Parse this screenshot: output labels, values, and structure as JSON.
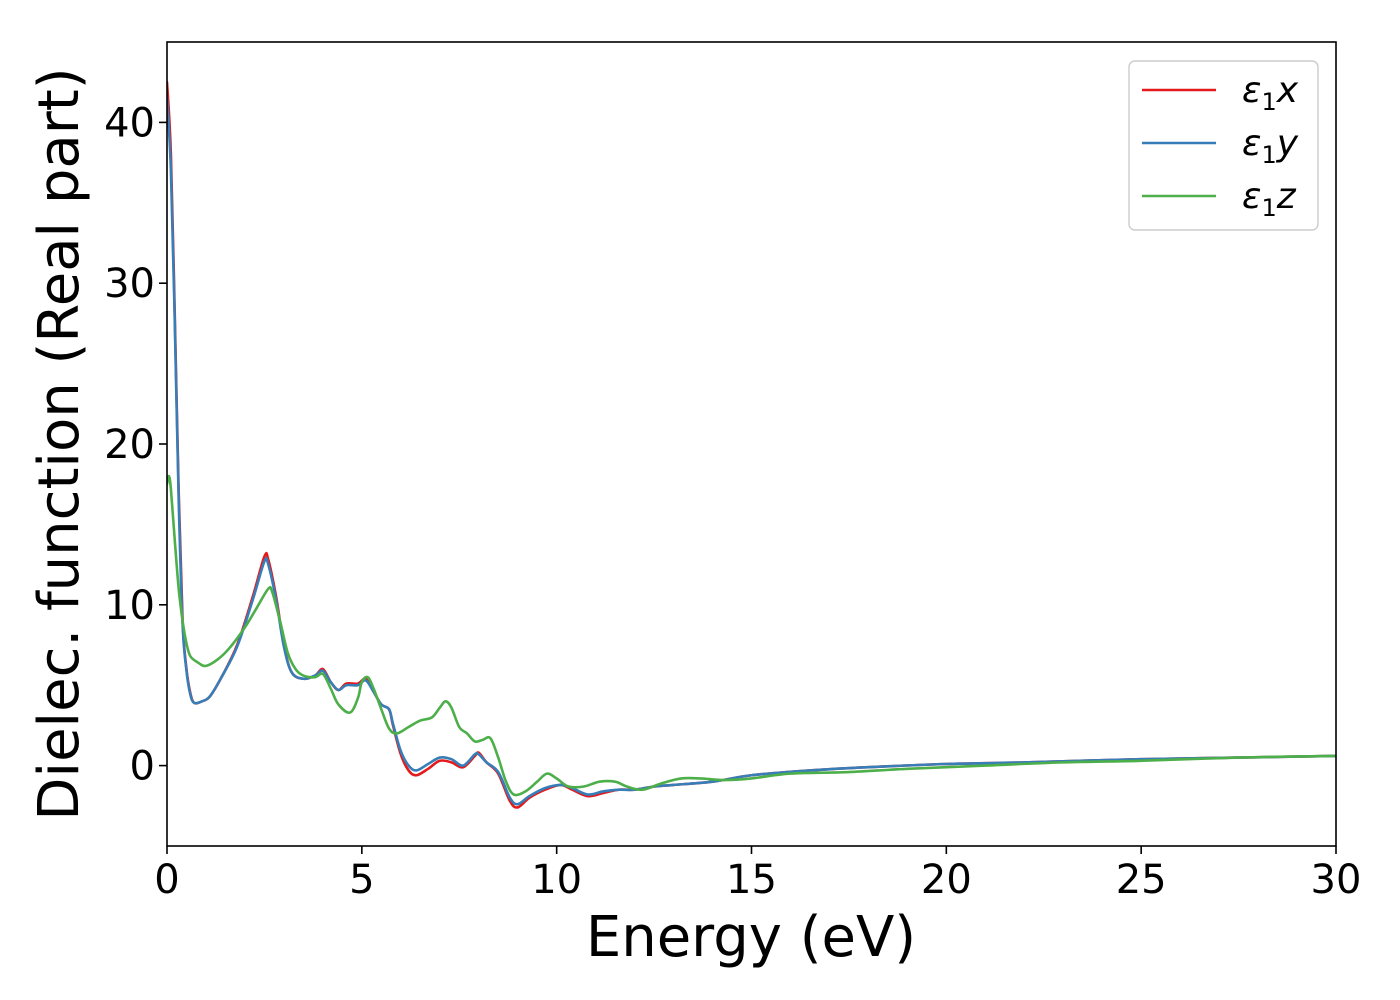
{
  "chart_data": {
    "type": "line",
    "xlabel": "Energy (eV)",
    "ylabel": "Dielec. function (Real part)",
    "xlim": [
      0,
      30
    ],
    "ylim": [
      -5,
      45
    ],
    "xticks": [
      0,
      5,
      10,
      15,
      20,
      25,
      30
    ],
    "yticks": [
      0,
      10,
      20,
      30,
      40
    ],
    "grid": false,
    "legend_position": "top-right",
    "series": [
      {
        "name": "ε₁x",
        "legend_main": "ε",
        "legend_sub": "1",
        "legend_var": "x",
        "color": "#e41a1c",
        "points": [
          [
            0,
            42.5
          ],
          [
            0.1,
            38
          ],
          [
            0.2,
            28
          ],
          [
            0.3,
            17
          ],
          [
            0.4,
            9
          ],
          [
            0.5,
            6
          ],
          [
            0.6,
            4.5
          ],
          [
            0.7,
            3.9
          ],
          [
            0.9,
            4.0
          ],
          [
            1.1,
            4.3
          ],
          [
            1.4,
            5.5
          ],
          [
            1.8,
            7.5
          ],
          [
            2.2,
            10.5
          ],
          [
            2.5,
            13.0
          ],
          [
            2.6,
            12.8
          ],
          [
            2.8,
            10.5
          ],
          [
            3.0,
            7.5
          ],
          [
            3.2,
            5.8
          ],
          [
            3.5,
            5.4
          ],
          [
            3.8,
            5.6
          ],
          [
            4.0,
            6.0
          ],
          [
            4.2,
            5.2
          ],
          [
            4.4,
            4.7
          ],
          [
            4.6,
            5.1
          ],
          [
            4.9,
            5.1
          ],
          [
            5.1,
            5.4
          ],
          [
            5.3,
            4.6
          ],
          [
            5.5,
            3.8
          ],
          [
            5.7,
            3.5
          ],
          [
            5.8,
            2.5
          ],
          [
            6.0,
            0.7
          ],
          [
            6.2,
            -0.3
          ],
          [
            6.4,
            -0.6
          ],
          [
            6.7,
            -0.2
          ],
          [
            7.0,
            0.3
          ],
          [
            7.3,
            0.2
          ],
          [
            7.6,
            -0.1
          ],
          [
            7.9,
            0.6
          ],
          [
            8.0,
            0.8
          ],
          [
            8.2,
            0.2
          ],
          [
            8.5,
            -0.5
          ],
          [
            8.8,
            -2.2
          ],
          [
            9.0,
            -2.6
          ],
          [
            9.3,
            -2.0
          ],
          [
            9.7,
            -1.5
          ],
          [
            10.1,
            -1.2
          ],
          [
            10.4,
            -1.5
          ],
          [
            10.8,
            -1.9
          ],
          [
            11.2,
            -1.7
          ],
          [
            11.6,
            -1.5
          ],
          [
            12.0,
            -1.5
          ],
          [
            12.5,
            -1.3
          ],
          [
            13.0,
            -1.2
          ],
          [
            14.0,
            -1.0
          ],
          [
            15.0,
            -0.6
          ],
          [
            16.5,
            -0.3
          ],
          [
            18.0,
            -0.1
          ],
          [
            20.0,
            0.1
          ],
          [
            22.0,
            0.2
          ],
          [
            25.0,
            0.4
          ],
          [
            27.5,
            0.5
          ],
          [
            30.0,
            0.6
          ]
        ]
      },
      {
        "name": "ε₁y",
        "legend_main": "ε",
        "legend_sub": "1",
        "legend_var": "y",
        "color": "#377eb8",
        "points": [
          [
            0,
            41.5
          ],
          [
            0.1,
            37
          ],
          [
            0.2,
            27.5
          ],
          [
            0.3,
            16.5
          ],
          [
            0.4,
            8.8
          ],
          [
            0.5,
            5.9
          ],
          [
            0.6,
            4.4
          ],
          [
            0.7,
            3.9
          ],
          [
            0.9,
            4.0
          ],
          [
            1.1,
            4.3
          ],
          [
            1.4,
            5.5
          ],
          [
            1.8,
            7.4
          ],
          [
            2.2,
            10.3
          ],
          [
            2.5,
            12.7
          ],
          [
            2.6,
            12.5
          ],
          [
            2.8,
            10.3
          ],
          [
            3.0,
            7.4
          ],
          [
            3.2,
            5.8
          ],
          [
            3.5,
            5.4
          ],
          [
            3.8,
            5.6
          ],
          [
            4.0,
            5.9
          ],
          [
            4.2,
            5.2
          ],
          [
            4.4,
            4.7
          ],
          [
            4.6,
            5.0
          ],
          [
            4.9,
            5.0
          ],
          [
            5.1,
            5.3
          ],
          [
            5.3,
            4.6
          ],
          [
            5.5,
            3.8
          ],
          [
            5.7,
            3.5
          ],
          [
            5.8,
            2.6
          ],
          [
            6.0,
            0.9
          ],
          [
            6.2,
            0.0
          ],
          [
            6.4,
            -0.3
          ],
          [
            6.7,
            0.1
          ],
          [
            7.0,
            0.5
          ],
          [
            7.3,
            0.4
          ],
          [
            7.6,
            0.0
          ],
          [
            7.9,
            0.7
          ],
          [
            8.0,
            0.7
          ],
          [
            8.2,
            0.2
          ],
          [
            8.5,
            -0.4
          ],
          [
            8.8,
            -2.0
          ],
          [
            9.0,
            -2.4
          ],
          [
            9.3,
            -1.9
          ],
          [
            9.7,
            -1.4
          ],
          [
            10.1,
            -1.2
          ],
          [
            10.4,
            -1.4
          ],
          [
            10.8,
            -1.8
          ],
          [
            11.2,
            -1.6
          ],
          [
            11.6,
            -1.5
          ],
          [
            12.0,
            -1.5
          ],
          [
            12.5,
            -1.3
          ],
          [
            13.0,
            -1.2
          ],
          [
            14.0,
            -1.0
          ],
          [
            15.0,
            -0.6
          ],
          [
            16.5,
            -0.3
          ],
          [
            18.0,
            -0.1
          ],
          [
            20.0,
            0.1
          ],
          [
            22.0,
            0.2
          ],
          [
            25.0,
            0.4
          ],
          [
            27.5,
            0.5
          ],
          [
            30.0,
            0.6
          ]
        ]
      },
      {
        "name": "ε₁z",
        "legend_main": "ε",
        "legend_sub": "1",
        "legend_var": "z",
        "color": "#4daf4a",
        "points": [
          [
            0,
            17.5
          ],
          [
            0.05,
            18
          ],
          [
            0.1,
            17.2
          ],
          [
            0.2,
            14.0
          ],
          [
            0.3,
            11.0
          ],
          [
            0.4,
            9.0
          ],
          [
            0.5,
            7.6
          ],
          [
            0.6,
            6.8
          ],
          [
            0.8,
            6.4
          ],
          [
            1.0,
            6.2
          ],
          [
            1.3,
            6.6
          ],
          [
            1.6,
            7.3
          ],
          [
            2.0,
            8.6
          ],
          [
            2.3,
            9.8
          ],
          [
            2.6,
            11.0
          ],
          [
            2.7,
            10.8
          ],
          [
            2.9,
            9.0
          ],
          [
            3.1,
            7.0
          ],
          [
            3.3,
            6.0
          ],
          [
            3.5,
            5.6
          ],
          [
            3.8,
            5.5
          ],
          [
            4.0,
            5.7
          ],
          [
            4.2,
            4.8
          ],
          [
            4.4,
            3.8
          ],
          [
            4.7,
            3.3
          ],
          [
            4.9,
            4.2
          ],
          [
            5.0,
            5.2
          ],
          [
            5.15,
            5.5
          ],
          [
            5.3,
            4.8
          ],
          [
            5.5,
            3.5
          ],
          [
            5.7,
            2.3
          ],
          [
            5.9,
            2.0
          ],
          [
            6.2,
            2.4
          ],
          [
            6.5,
            2.8
          ],
          [
            6.8,
            3.0
          ],
          [
            7.0,
            3.6
          ],
          [
            7.15,
            4.0
          ],
          [
            7.3,
            3.6
          ],
          [
            7.5,
            2.4
          ],
          [
            7.7,
            2.0
          ],
          [
            7.9,
            1.5
          ],
          [
            8.1,
            1.6
          ],
          [
            8.3,
            1.7
          ],
          [
            8.5,
            0.5
          ],
          [
            8.7,
            -1.0
          ],
          [
            8.9,
            -1.8
          ],
          [
            9.2,
            -1.6
          ],
          [
            9.5,
            -1.0
          ],
          [
            9.75,
            -0.5
          ],
          [
            10.0,
            -0.8
          ],
          [
            10.3,
            -1.3
          ],
          [
            10.7,
            -1.3
          ],
          [
            11.1,
            -1.0
          ],
          [
            11.5,
            -1.0
          ],
          [
            11.8,
            -1.3
          ],
          [
            12.2,
            -1.5
          ],
          [
            12.7,
            -1.1
          ],
          [
            13.2,
            -0.8
          ],
          [
            13.7,
            -0.8
          ],
          [
            14.3,
            -0.9
          ],
          [
            15.0,
            -0.8
          ],
          [
            16.0,
            -0.5
          ],
          [
            17.5,
            -0.4
          ],
          [
            19.0,
            -0.2
          ],
          [
            21.0,
            0.0
          ],
          [
            23.0,
            0.2
          ],
          [
            25.0,
            0.3
          ],
          [
            27.5,
            0.5
          ],
          [
            30.0,
            0.6
          ]
        ]
      }
    ]
  }
}
